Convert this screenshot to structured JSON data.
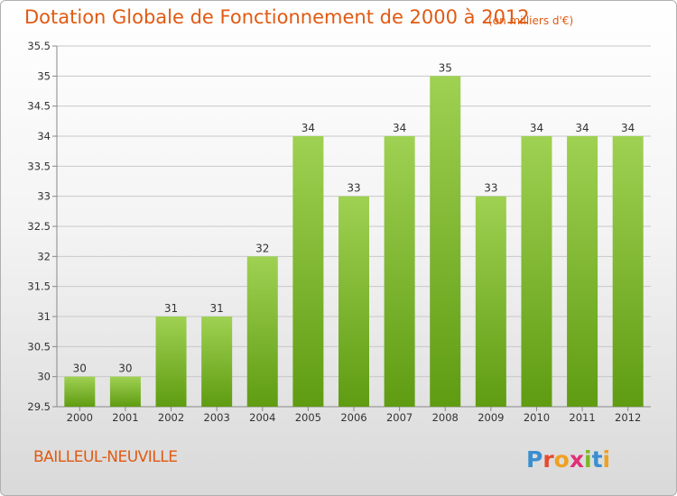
{
  "header": {
    "title": "Dotation Globale de Fonctionnement de 2000 à 2012",
    "unit": "(en milliers d'€)"
  },
  "footer": {
    "commune": "BAILLEUL-NEUVILLE",
    "logo_text": "Proxiti"
  },
  "colors": {
    "title": "#e05a12",
    "bar_light": "#9fd152",
    "bar_dark": "#5f9c12",
    "grid": "#c8c8c8"
  },
  "chart_data": {
    "type": "bar",
    "title": "Dotation Globale de Fonctionnement de 2000 à 2012",
    "subtitle": "(en milliers d'€)",
    "categories": [
      "2000",
      "2001",
      "2002",
      "2003",
      "2004",
      "2005",
      "2006",
      "2007",
      "2008",
      "2009",
      "2010",
      "2011",
      "2012"
    ],
    "values": [
      30,
      30,
      31,
      31,
      32,
      34,
      33,
      34,
      35,
      33,
      34,
      34,
      34
    ],
    "value_labels": [
      "30",
      "30",
      "31",
      "31",
      "32",
      "34",
      "33",
      "34",
      "35",
      "33",
      "34",
      "34",
      "34"
    ],
    "ylim": [
      29.5,
      35.5
    ],
    "yticks": [
      "29.5",
      "30",
      "30.5",
      "31",
      "31.5",
      "32",
      "32.5",
      "33",
      "33.5",
      "34",
      "34.5",
      "35",
      "35.5"
    ],
    "grid": true,
    "legend": "none"
  }
}
